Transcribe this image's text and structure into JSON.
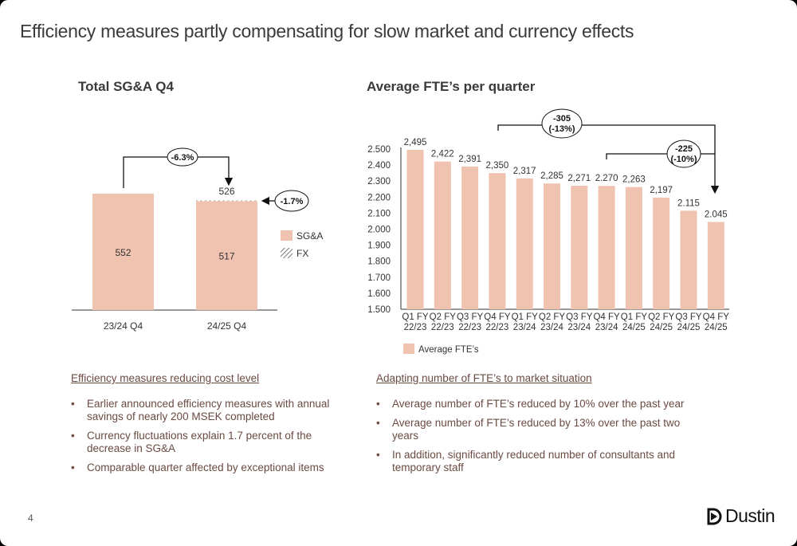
{
  "title": "Efficiency measures partly compensating for slow market and currency effects",
  "colors": {
    "bar": "#f0c2b0",
    "text": "#6b4a42",
    "dark": "#3a3a3a"
  },
  "chart_data": [
    {
      "type": "bar",
      "title": "Total SG&A Q4",
      "categories": [
        "23/24 Q4",
        "24/25 Q4"
      ],
      "series": [
        {
          "name": "SG&A",
          "values": [
            552,
            517
          ]
        },
        {
          "name": "FX",
          "values": [
            0,
            9
          ]
        }
      ],
      "stacked": true,
      "total_labels": [
        null,
        "526"
      ],
      "annotations": {
        "change": "-6.3%",
        "fx_effect": "-1.7%"
      },
      "legend": [
        "SG&A",
        "FX"
      ],
      "legend_position": "right"
    },
    {
      "type": "bar",
      "title": "Average FTE’s per quarter",
      "categories": [
        [
          "Q1 FY",
          "22/23"
        ],
        [
          "Q2 FY",
          "22/23"
        ],
        [
          "Q3 FY",
          "22/23"
        ],
        [
          "Q4 FY",
          "22/23"
        ],
        [
          "Q1 FY",
          "23/24"
        ],
        [
          "Q2 FY",
          "23/24"
        ],
        [
          "Q3 FY",
          "23/24"
        ],
        [
          "Q4 FY",
          "23/24"
        ],
        [
          "Q1 FY",
          "24/25"
        ],
        [
          "Q2 FY",
          "24/25"
        ],
        [
          "Q3 FY",
          "24/25"
        ],
        [
          "Q4 FY",
          "24/25"
        ]
      ],
      "series": [
        {
          "name": "Average FTE’s",
          "values": [
            2495,
            2422,
            2391,
            2350,
            2317,
            2285,
            2271,
            2270,
            2263,
            2197,
            2115,
            2045
          ]
        }
      ],
      "data_labels": [
        "2,495",
        "2,422",
        "2,391",
        "2,350",
        "2,317",
        "2,285",
        "2,271",
        "2.270",
        "2,263",
        "2,197",
        "2.115",
        "2.045"
      ],
      "ylim": [
        1500,
        2500
      ],
      "yticks": [
        "1.500",
        "1.600",
        "1.700",
        "1.800",
        "1.900",
        "2.000",
        "2.100",
        "2.200",
        "2.300",
        "2.400",
        "2.500"
      ],
      "annotations": {
        "two_year": [
          "-305",
          "(-13%)"
        ],
        "one_year": [
          "-225",
          "(-10%)"
        ]
      },
      "legend_position": "bottom-left"
    }
  ],
  "left": {
    "heading": "Efficiency measures reducing cost level",
    "bullets": [
      "Earlier announced efficiency measures with annual savings of nearly 200 MSEK completed",
      "Currency fluctuations explain 1.7 percent of the decrease in SG&A",
      "Comparable quarter affected by exceptional items"
    ]
  },
  "right": {
    "heading": "Adapting number of FTE’s to market situation",
    "bullets": [
      "Average number of FTE’s reduced by 10% over the past year",
      "Average number of FTE’s reduced by 13% over the past two years",
      "In addition, significantly reduced number of consultants and temporary staff"
    ]
  },
  "page_number": "4",
  "logo": "Dustin"
}
